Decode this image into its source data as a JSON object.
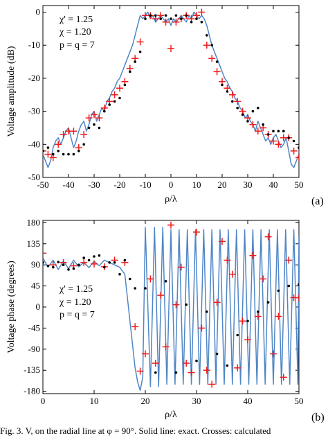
{
  "caption": "Fig. 3. V, on the radial line at φ = 90°. Solid line: exact. Crosses: calculated",
  "colors": {
    "line": "#4f86c6",
    "cross": "#ee1c1c",
    "dot": "#000000",
    "axis": "#000000"
  },
  "chart_data": [
    {
      "type": "line",
      "panel_label": "(a)",
      "xlabel": "ρ/λ",
      "ylabel": "Voltage amplitude (dB)",
      "xlim": [
        -50,
        50
      ],
      "ylim": [
        -50,
        2
      ],
      "xticks": [
        -50,
        -40,
        -30,
        -20,
        -10,
        0,
        10,
        20,
        30,
        40,
        50
      ],
      "yticks": [
        0,
        -10,
        -20,
        -30,
        -40,
        -50
      ],
      "annotations": [
        "χ' = 1.25",
        "χ = 1.20",
        "p = q = 7"
      ],
      "series": [
        {
          "style": "solid-line",
          "x": [
            -50,
            -49,
            -48,
            -47,
            -46,
            -45,
            -44,
            -43,
            -42,
            -41,
            -40,
            -39,
            -38,
            -37,
            -36,
            -35,
            -34,
            -33,
            -32,
            -31,
            -30,
            -29,
            -28,
            -27,
            -26,
            -25,
            -24,
            -23,
            -22,
            -21,
            -20,
            -19,
            -18,
            -17,
            -16,
            -15,
            -14,
            -13,
            -12,
            -11,
            -10,
            -9,
            -8,
            -7,
            -6,
            -5,
            -4,
            -3,
            -2,
            -1,
            0,
            1,
            2,
            3,
            4,
            5,
            6,
            7,
            8,
            9,
            10,
            11,
            12,
            13,
            14,
            15,
            16,
            17,
            18,
            19,
            20,
            21,
            22,
            23,
            24,
            25,
            26,
            27,
            28,
            29,
            30,
            31,
            32,
            33,
            34,
            35,
            36,
            37,
            38,
            39,
            40,
            41,
            42,
            43,
            44,
            45,
            46,
            47,
            48,
            49,
            50
          ],
          "y": [
            -43,
            -45,
            -47,
            -45,
            -41,
            -39,
            -38,
            -40,
            -38,
            -36,
            -35,
            -38,
            -41,
            -39,
            -36,
            -34,
            -33,
            -36,
            -34,
            -31,
            -30,
            -33,
            -31,
            -29,
            -30,
            -27,
            -26,
            -24,
            -23,
            -21,
            -20,
            -18,
            -16,
            -14,
            -12,
            -10,
            -7,
            -4,
            -1,
            -2,
            -1,
            0,
            -2,
            -1,
            -3,
            -2,
            -1,
            -2,
            -3,
            -2,
            -4,
            -2,
            -3,
            -2,
            -1,
            -2,
            -3,
            -1,
            -2,
            0,
            -1,
            -2,
            -1,
            -2,
            -4,
            -7,
            -10,
            -12,
            -14,
            -16,
            -18,
            -20,
            -21,
            -23,
            -24,
            -26,
            -27,
            -29,
            -30,
            -32,
            -31,
            -33,
            -34,
            -36,
            -33,
            -35,
            -37,
            -39,
            -38,
            -40,
            -38,
            -37,
            -39,
            -41,
            -40,
            -38,
            -42,
            -46,
            -47,
            -45,
            -43
          ]
        },
        {
          "style": "crosses",
          "x": [
            -50,
            -48,
            -46,
            -44,
            -42,
            -40,
            -38,
            -36,
            -34,
            -32,
            -30,
            -28,
            -26,
            -24,
            -22,
            -20,
            -18,
            -16,
            -14,
            -12,
            -10,
            -8,
            -6,
            -4,
            -2,
            0,
            2,
            4,
            6,
            8,
            10,
            12,
            14,
            16,
            18,
            20,
            22,
            24,
            26,
            28,
            30,
            32,
            34,
            36,
            38,
            40,
            42,
            44,
            46,
            48,
            50
          ],
          "y": [
            -42,
            -43,
            -44,
            -40,
            -37,
            -36,
            -36,
            -41,
            -37,
            -32,
            -31,
            -32,
            -29,
            -27,
            -25,
            -23,
            -21,
            -17,
            -14,
            -9,
            -1,
            -1,
            -2,
            -1,
            -3,
            -11,
            -3,
            -2,
            -1,
            -2,
            -1,
            0,
            -10,
            -14,
            -18,
            -21,
            -23,
            -25,
            -27,
            -30,
            -32,
            -34,
            -36,
            -35,
            -37,
            -39,
            -40,
            -38,
            -38,
            -42,
            -44
          ]
        },
        {
          "style": "dots",
          "x": [
            -50,
            -48,
            -46,
            -44,
            -42,
            -40,
            -38,
            -36,
            -34,
            -32,
            -30,
            -28,
            -26,
            -24,
            -22,
            -20,
            -18,
            -16,
            -14,
            -12,
            -10,
            -8,
            -6,
            -4,
            -2,
            0,
            2,
            4,
            6,
            8,
            10,
            12,
            14,
            16,
            18,
            20,
            22,
            24,
            26,
            28,
            30,
            32,
            34,
            36,
            38,
            40,
            42,
            44,
            46,
            48,
            50
          ],
          "y": [
            -42,
            -41,
            -43,
            -42,
            -43,
            -43,
            -43,
            -42,
            -40,
            -35,
            -34,
            -35,
            -30,
            -28,
            -27,
            -26,
            -22,
            -18,
            -15,
            -12,
            -2,
            -1,
            -1,
            -2,
            -1,
            -2,
            -1,
            -2,
            -1,
            -3,
            -2,
            -3,
            -7,
            -10,
            -15,
            -22,
            -24,
            -27,
            -29,
            -31,
            -33,
            -30,
            -29,
            -34,
            -37,
            -36,
            -36,
            -36,
            -38,
            -39,
            -41
          ]
        }
      ]
    },
    {
      "type": "line",
      "panel_label": "(b)",
      "xlabel": "ρ/λ",
      "ylabel": "Voltage phase (degrees)",
      "xlim": [
        0,
        50
      ],
      "ylim": [
        -185,
        185
      ],
      "xticks": [
        0,
        10,
        20,
        30,
        40,
        50
      ],
      "yticks": [
        180,
        135,
        90,
        45,
        0,
        -45,
        -90,
        -135,
        -180
      ],
      "annotations": [
        "χ' = 1.25",
        "χ = 1.20",
        "p = q = 7"
      ],
      "series": [
        {
          "style": "solid-line",
          "x": [
            0,
            1,
            2,
            3,
            4,
            5,
            6,
            7,
            8,
            9,
            10,
            11,
            12,
            13,
            14,
            15,
            16,
            16.5,
            17,
            17.5,
            18,
            18.5,
            19,
            19.5,
            20,
            21,
            21.8,
            22.6,
            23.4,
            24.2,
            25,
            25.8,
            26.6,
            27.4,
            28.2,
            29,
            29.8,
            30.6,
            31.4,
            32.2,
            33,
            33.8,
            34.6,
            35.4,
            36.2,
            37,
            37.8,
            38.6,
            39.4,
            40.2,
            41,
            41.8,
            42.6,
            43.4,
            44.2,
            45,
            45.8,
            46.6,
            47.4,
            48.2,
            49,
            49.8,
            50
          ],
          "y": [
            105,
            85,
            100,
            80,
            98,
            82,
            100,
            86,
            95,
            84,
            98,
            88,
            100,
            95,
            90,
            85,
            70,
            20,
            -30,
            -80,
            -130,
            -160,
            -178,
            -150,
            170,
            -170,
            170,
            -170,
            170,
            -165,
            165,
            -165,
            165,
            -165,
            165,
            -165,
            165,
            -165,
            165,
            -165,
            165,
            -165,
            165,
            -165,
            165,
            -165,
            165,
            -165,
            165,
            -165,
            165,
            -165,
            165,
            -165,
            165,
            -165,
            165,
            -165,
            165,
            -165,
            165,
            -165,
            150
          ]
        },
        {
          "style": "crosses",
          "x": [
            0,
            2,
            4,
            6,
            8,
            10,
            12,
            14,
            16,
            18,
            19,
            20,
            21,
            22,
            23,
            24,
            25,
            26,
            27,
            28,
            29,
            30,
            31,
            32,
            33,
            34,
            35,
            36,
            37,
            38,
            39,
            40,
            41,
            42,
            43,
            44,
            45,
            46,
            47,
            48,
            49,
            50
          ],
          "y": [
            115,
            90,
            95,
            88,
            95,
            92,
            86,
            100,
            95,
            -42,
            -137,
            -100,
            60,
            -120,
            25,
            -85,
            175,
            5,
            85,
            -120,
            -140,
            160,
            -45,
            -135,
            -165,
            10,
            140,
            100,
            70,
            -130,
            -30,
            -70,
            110,
            -20,
            60,
            150,
            -100,
            -20,
            -150,
            100,
            20,
            20
          ]
        },
        {
          "style": "dots",
          "x": [
            0,
            1,
            2,
            3,
            4,
            5,
            6,
            7,
            8,
            9,
            10,
            11,
            12,
            13,
            14,
            15,
            16,
            17,
            18,
            20,
            22,
            24,
            26,
            28,
            30,
            32,
            34,
            36,
            38,
            40,
            42,
            44,
            46,
            48,
            50
          ],
          "y": [
            95,
            88,
            85,
            96,
            90,
            80,
            82,
            90,
            105,
            100,
            108,
            110,
            85,
            95,
            95,
            70,
            100,
            60,
            40,
            40,
            -140,
            55,
            -140,
            5,
            -115,
            -10,
            -100,
            -125,
            -60,
            -30,
            -10,
            10,
            35,
            45,
            48
          ]
        }
      ]
    }
  ]
}
